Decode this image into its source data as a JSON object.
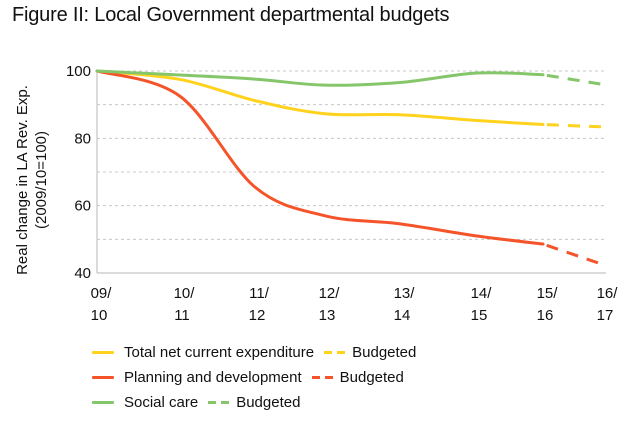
{
  "colors": {
    "total": "#FFD21E",
    "planning": "#F5542A",
    "social": "#86C66A",
    "grid": "#C8C8C8",
    "axis": "#CFCFCF"
  },
  "chart_data": {
    "type": "line",
    "title": "Figure II: Local Government departmental budgets",
    "xlabel": "",
    "ylabel": [
      "Real change in LA Rev. Exp.",
      "(2009/10=100)"
    ],
    "ylim": [
      40,
      100
    ],
    "yticks": [
      40,
      60,
      80,
      100
    ],
    "grid": true,
    "grid_step": 10,
    "categories": [
      [
        "09/",
        "10"
      ],
      [
        "10/",
        "11"
      ],
      [
        "11/",
        "12"
      ],
      [
        "12/",
        "13"
      ],
      [
        "13/",
        "14"
      ],
      [
        "14/",
        "15"
      ],
      [
        "15/",
        "16"
      ],
      [
        "16/",
        "17"
      ]
    ],
    "legend_position": "bottom",
    "series": [
      {
        "key": "total",
        "name": "Total net current expenditure",
        "budget_label": "Budgeted",
        "values": [
          100,
          97.5,
          91.2,
          87.3,
          87.0,
          85.3,
          84.1,
          83.4
        ],
        "budgeted_from_index": 6
      },
      {
        "key": "planning",
        "name": "Planning and development",
        "budget_label": "Budgeted",
        "values": [
          100,
          92.5,
          65.5,
          57.0,
          54.6,
          51.0,
          48.6,
          42.5
        ],
        "budgeted_from_index": 6
      },
      {
        "key": "social",
        "name": "Social care",
        "budget_label": "Budgeted",
        "values": [
          100,
          98.8,
          97.6,
          95.8,
          96.6,
          99.4,
          98.9,
          96.0
        ],
        "budgeted_from_index": 6
      }
    ]
  }
}
